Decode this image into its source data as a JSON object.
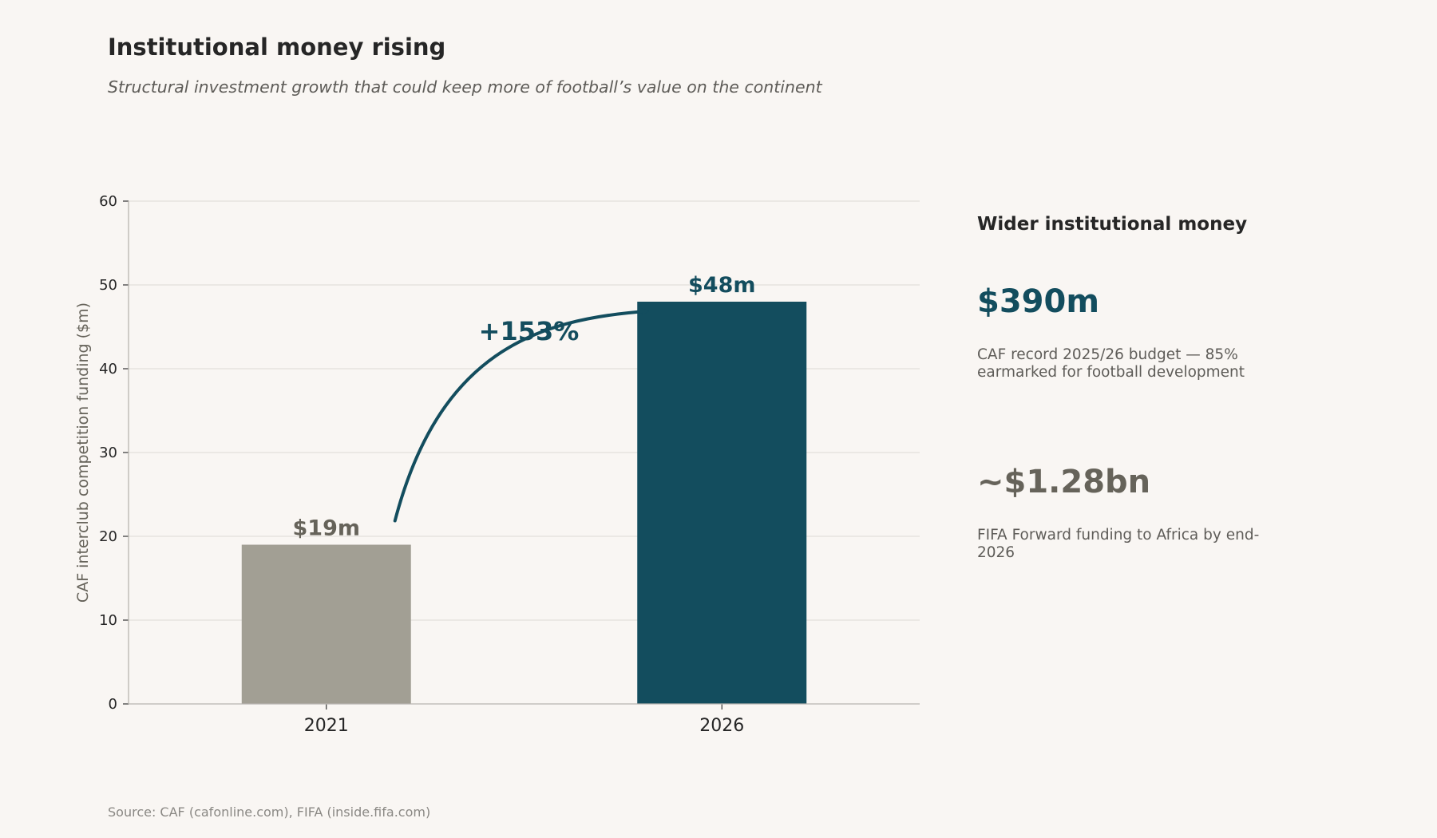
{
  "header": {
    "title": "Institutional money rising",
    "subtitle": "Structural investment growth that could keep more of football’s value on the continent"
  },
  "chart_data": {
    "type": "bar",
    "categories": [
      "2021",
      "2026"
    ],
    "values": [
      19,
      48
    ],
    "value_labels": [
      "$19m",
      "$48m"
    ],
    "bar_colors": [
      "#a29f94",
      "#134d5e"
    ],
    "label_colors": [
      "#66635a",
      "#134d5e"
    ],
    "ylabel": "CAF interclub competition funding ($m)",
    "ylim": [
      0,
      60
    ],
    "yticks": [
      0,
      10,
      20,
      30,
      40,
      50,
      60
    ],
    "grid": true,
    "annotation": {
      "text": "+153%",
      "from": "2021",
      "to": "2026",
      "color": "#134d5e"
    }
  },
  "sidebar": {
    "heading": "Wider institutional money",
    "stats": [
      {
        "value": "$390m",
        "desc": "CAF record 2025/26 budget — 85% earmarked for football development",
        "color": "#134d5e"
      },
      {
        "value": "~$1.28bn",
        "desc": "FIFA Forward funding to Africa by end-2026",
        "color": "#66635a"
      }
    ]
  },
  "footer": {
    "source": "Source: CAF (cafonline.com), FIFA (inside.fifa.com)"
  }
}
